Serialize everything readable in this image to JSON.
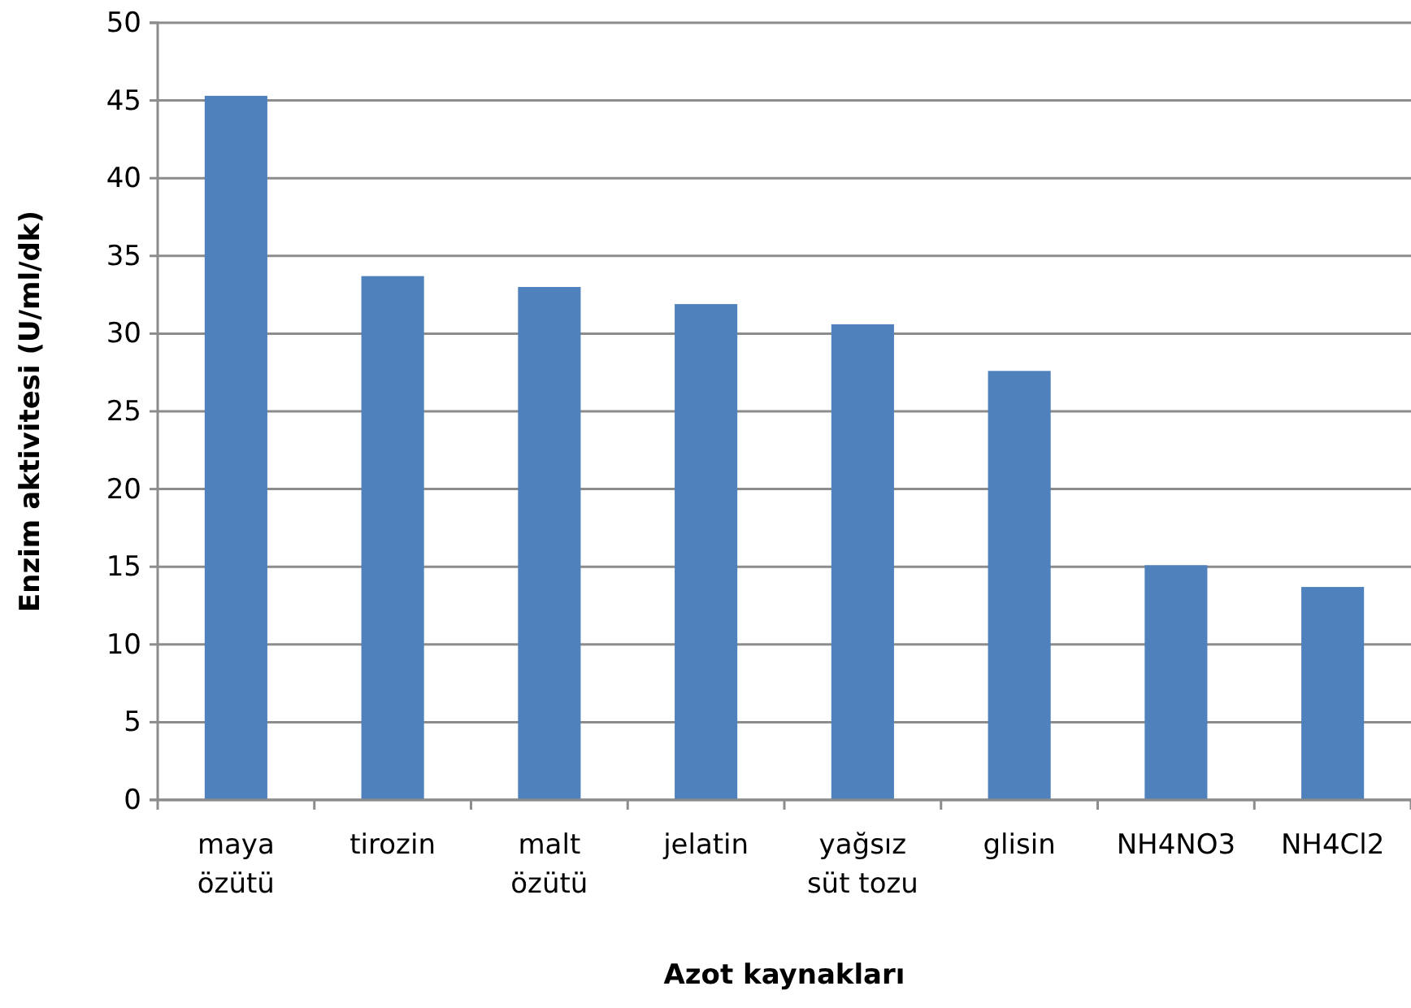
{
  "chart_data": {
    "type": "bar",
    "xlabel": "Azot kaynakları",
    "ylabel": "Enzim aktivitesi (U/ml/dk)",
    "categories": [
      "maya\nözütü",
      "tirozin",
      "malt\nözütü",
      "jelatin",
      "yağsız\nsüt tozu",
      "glisin",
      "NH4NO3",
      "NH4Cl2"
    ],
    "values": [
      45.3,
      33.7,
      33.0,
      31.9,
      30.6,
      27.6,
      15.1,
      13.7
    ],
    "color": "#4f81bd",
    "ylim": [
      0,
      50
    ],
    "yticks": [
      0,
      5,
      10,
      15,
      20,
      25,
      30,
      35,
      40,
      45,
      50
    ],
    "grid": "y"
  }
}
